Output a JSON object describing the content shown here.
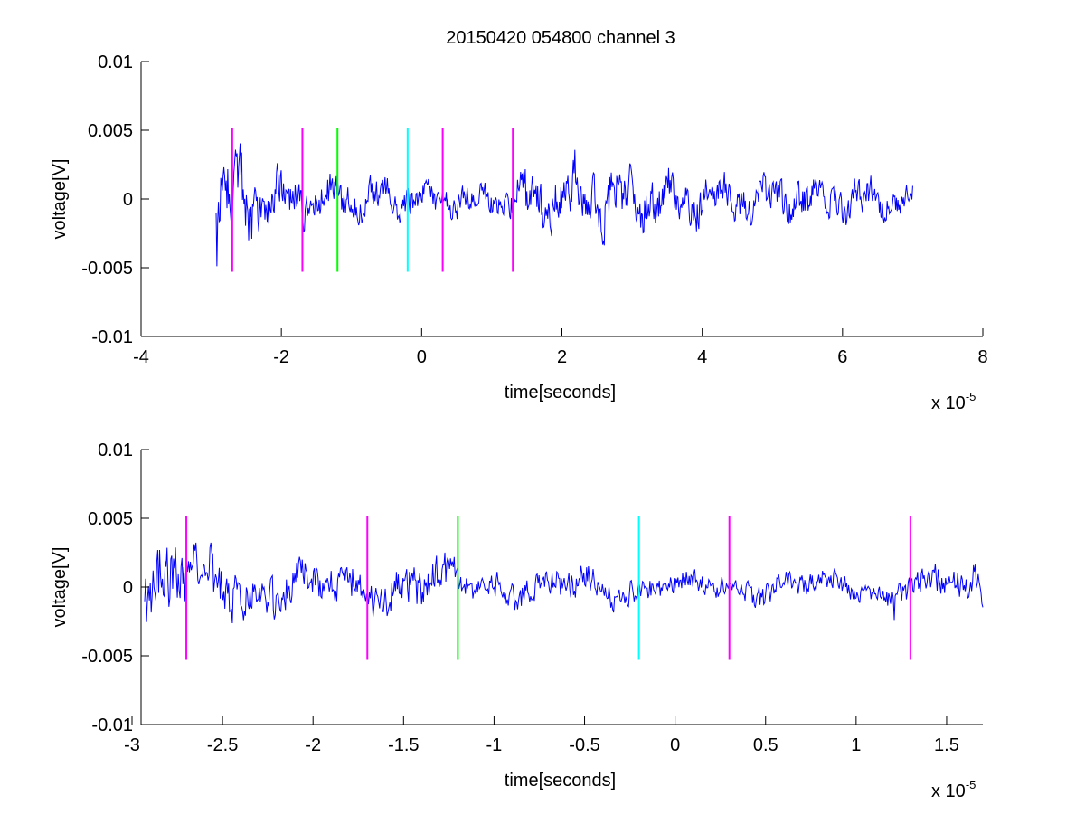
{
  "figure": {
    "title": "20150420 054800 channel 3"
  },
  "chart_data": [
    {
      "type": "line",
      "title": "20150420 054800 channel 3",
      "xlabel": "time[seconds]",
      "ylabel": "voltage[V]",
      "x_exponent_label": "x 10",
      "x_exponent": "-5",
      "xlim": [
        -4,
        8
      ],
      "ylim": [
        -0.01,
        0.01
      ],
      "xticks": [
        "-4",
        "-2",
        "0",
        "2",
        "4",
        "6",
        "8"
      ],
      "yticks": [
        "-0.01",
        "-0.005",
        "0",
        "0.005",
        "0.01"
      ],
      "grid": false,
      "signal": {
        "color": "#0000ff",
        "x_range": [
          -2.93,
          7.0
        ],
        "envelope": [
          [
            -2.93,
            0.004
          ],
          [
            -2.6,
            0.004
          ],
          [
            -2.0,
            0.0022
          ],
          [
            -1.0,
            0.0018
          ],
          [
            0.0,
            0.0015
          ],
          [
            1.2,
            0.0014
          ],
          [
            1.5,
            0.0024
          ],
          [
            2.5,
            0.003
          ],
          [
            3.5,
            0.0022
          ],
          [
            5.0,
            0.0018
          ],
          [
            6.0,
            0.002
          ],
          [
            7.0,
            0.0012
          ]
        ]
      },
      "markers": [
        {
          "x": -2.7,
          "ymin": -0.0053,
          "ymax": 0.0052,
          "color": "#ff00ff"
        },
        {
          "x": -1.7,
          "ymin": -0.0053,
          "ymax": 0.0052,
          "color": "#ff00ff"
        },
        {
          "x": -1.2,
          "ymin": -0.0053,
          "ymax": 0.0052,
          "color": "#00ff00"
        },
        {
          "x": -0.2,
          "ymin": -0.0053,
          "ymax": 0.0052,
          "color": "#00ffff"
        },
        {
          "x": 0.3,
          "ymin": -0.0053,
          "ymax": 0.0052,
          "color": "#ff00ff"
        },
        {
          "x": 1.3,
          "ymin": -0.0053,
          "ymax": 0.0052,
          "color": "#ff00ff"
        }
      ]
    },
    {
      "type": "line",
      "xlabel": "time[seconds]",
      "ylabel": "voltage[V]",
      "x_exponent_label": "x 10",
      "x_exponent": "-5",
      "xlim": [
        -2.95,
        1.7
      ],
      "ylim": [
        -0.01,
        0.01
      ],
      "xticks": [
        "-3",
        "-2.5",
        "-2",
        "-1.5",
        "-1",
        "-0.5",
        "0",
        "0.5",
        "1",
        "1.5"
      ],
      "yticks": [
        "-0.01",
        "-0.005",
        "0",
        "0.005",
        "0.01"
      ],
      "grid": false,
      "signal": {
        "color": "#0000ff",
        "x_range": [
          -2.93,
          1.7
        ],
        "envelope": [
          [
            -2.93,
            0.0042
          ],
          [
            -2.6,
            0.004
          ],
          [
            -2.3,
            0.0025
          ],
          [
            -1.9,
            0.0022
          ],
          [
            -1.4,
            0.0026
          ],
          [
            -1.0,
            0.0016
          ],
          [
            -0.5,
            0.0018
          ],
          [
            0.0,
            0.0012
          ],
          [
            0.5,
            0.0014
          ],
          [
            1.0,
            0.0012
          ],
          [
            1.4,
            0.0016
          ],
          [
            1.7,
            0.0022
          ]
        ]
      },
      "markers": [
        {
          "x": -2.7,
          "ymin": -0.0053,
          "ymax": 0.0052,
          "color": "#ff00ff"
        },
        {
          "x": -1.7,
          "ymin": -0.0053,
          "ymax": 0.0052,
          "color": "#ff00ff"
        },
        {
          "x": -1.2,
          "ymin": -0.0053,
          "ymax": 0.0052,
          "color": "#00ff00"
        },
        {
          "x": -0.2,
          "ymin": -0.0053,
          "ymax": 0.0052,
          "color": "#00ffff"
        },
        {
          "x": 0.3,
          "ymin": -0.0053,
          "ymax": 0.0052,
          "color": "#ff00ff"
        },
        {
          "x": 1.3,
          "ymin": -0.0053,
          "ymax": 0.0052,
          "color": "#ff00ff"
        }
      ]
    }
  ]
}
